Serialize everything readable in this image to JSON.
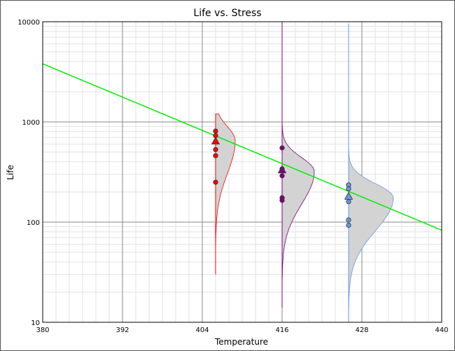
{
  "chart_data": {
    "type": "scatter",
    "title": "Life vs. Stress",
    "xlabel": "Temperature",
    "ylabel": "Life",
    "xlim": [
      380,
      440
    ],
    "ylim": [
      10,
      10000
    ],
    "yscale": "log",
    "grid": true,
    "x_ticks": [
      "380",
      "392",
      "404",
      "416",
      "428",
      "440"
    ],
    "y_ticks": [
      "10",
      "100",
      "1000",
      "10000"
    ],
    "colors": {
      "fit_line": "#00ee00",
      "pdf_fill": "#d3d3d3",
      "group_406": "#ff0000",
      "group_416": "#800080",
      "group_426": "#6699dd"
    },
    "fit_line": {
      "x": [
        380,
        440
      ],
      "y": [
        3800,
        83
      ]
    },
    "groups": [
      {
        "stress": 406,
        "color": "#ff0000",
        "failures": [
          810,
          730,
          630,
          530,
          460,
          250
        ],
        "mean_life": 640,
        "pdf_mode": 650,
        "pdf_extent": [
          30,
          1200
        ]
      },
      {
        "stress": 416,
        "color": "#800080",
        "failures": [
          550,
          340,
          290,
          175,
          165
        ],
        "mean_life": 330,
        "pdf_mode": 320,
        "pdf_extent": [
          14,
          10000
        ]
      },
      {
        "stress": 426,
        "color": "#6699dd",
        "failures": [
          235,
          215,
          160,
          105,
          93
        ],
        "mean_life": 180,
        "pdf_mode": 175,
        "pdf_extent": [
          10,
          9500
        ]
      }
    ]
  }
}
